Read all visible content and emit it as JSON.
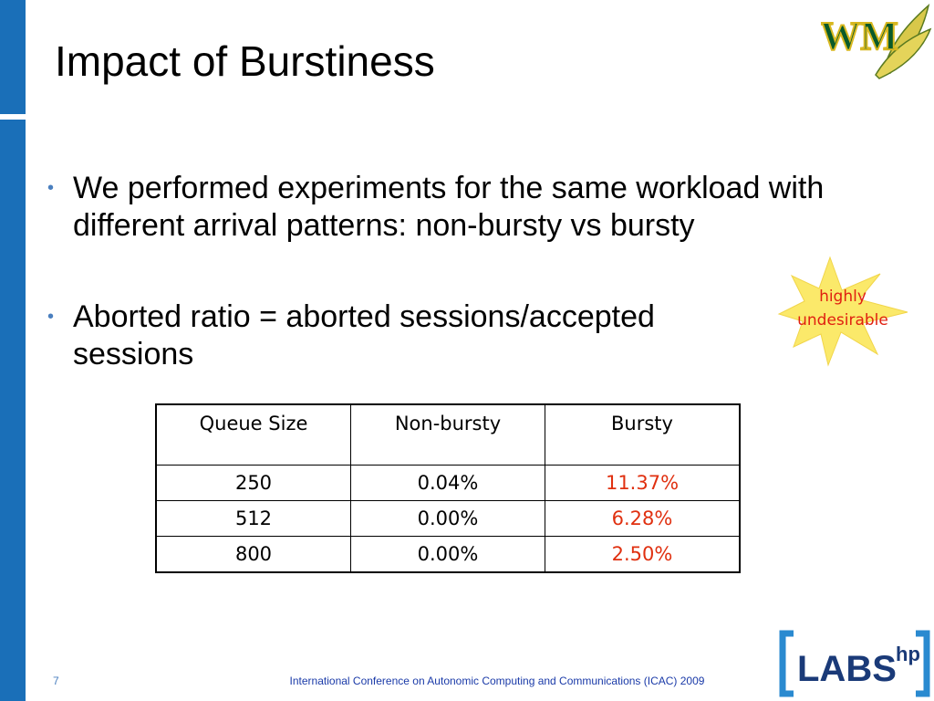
{
  "header": {
    "title": "Impact of Burstiness"
  },
  "bullets": [
    "We performed experiments for the same workload with different arrival patterns: non-bursty vs bursty",
    "Aborted ratio = aborted sessions/accepted sessions"
  ],
  "callout": {
    "line1": "highly",
    "line2": "undesirable"
  },
  "table": {
    "header": [
      "Queue Size",
      "Non-bursty",
      "Bursty"
    ],
    "rows": [
      [
        "250",
        "0.04%",
        "11.37%"
      ],
      [
        "512",
        "0.00%",
        "6.28%"
      ],
      [
        "800",
        "0.00%",
        "2.50%"
      ]
    ]
  },
  "logos": {
    "wm": "WM",
    "labs": "LABS",
    "hp": "hp"
  },
  "footer": {
    "page": "7",
    "text": "International Conference on Autonomic Computing and Communications (ICAC) 2009"
  }
}
